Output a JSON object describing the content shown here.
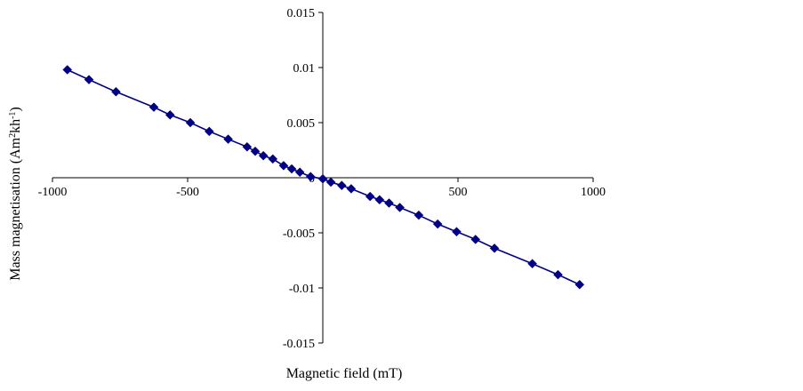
{
  "chart_data": {
    "type": "scatter",
    "title": "",
    "xlabel": "Magnetic field (mT)",
    "ylabel": {
      "base": "Mass magnetisation (Am",
      "sup1": "2",
      "mid": "kh",
      "sup2": "-1",
      "end": ")"
    },
    "xlim": [
      -1000,
      1000
    ],
    "ylim": [
      -0.015,
      0.015
    ],
    "x_ticks": [
      -1000,
      -500,
      0,
      500,
      1000
    ],
    "x_tick_labels": [
      "-1000",
      "-500",
      "0",
      "500",
      "1000"
    ],
    "y_ticks": [
      0.015,
      0.01,
      0.005,
      0,
      -0.005,
      -0.01,
      -0.015
    ],
    "y_tick_labels": [
      "0.015",
      "0.01",
      "0.005",
      "0",
      "-0.005",
      "-0.01",
      "-0.015"
    ],
    "grid": false,
    "legend": "none",
    "color": "#00008B",
    "series": [
      {
        "x": [
          -945,
          -865,
          -765,
          -625,
          -565,
          -490,
          -420,
          -350,
          -280,
          -250,
          -220,
          -185,
          -145,
          -115,
          -85,
          -45,
          0,
          30,
          70,
          105,
          175,
          210,
          245,
          285,
          355,
          425,
          495,
          565,
          635,
          775,
          870,
          950
        ],
        "y": [
          0.0098,
          0.0089,
          0.0078,
          0.0064,
          0.0057,
          0.005,
          0.0042,
          0.0035,
          0.0028,
          0.0024,
          0.002,
          0.0017,
          0.0011,
          0.0008,
          0.0005,
          0.0001,
          -0.0001,
          -0.0004,
          -0.0007,
          -0.001,
          -0.0017,
          -0.002,
          -0.0023,
          -0.0027,
          -0.0034,
          -0.0042,
          -0.0049,
          -0.0056,
          -0.0064,
          -0.0078,
          -0.0088,
          -0.0097
        ]
      }
    ]
  }
}
